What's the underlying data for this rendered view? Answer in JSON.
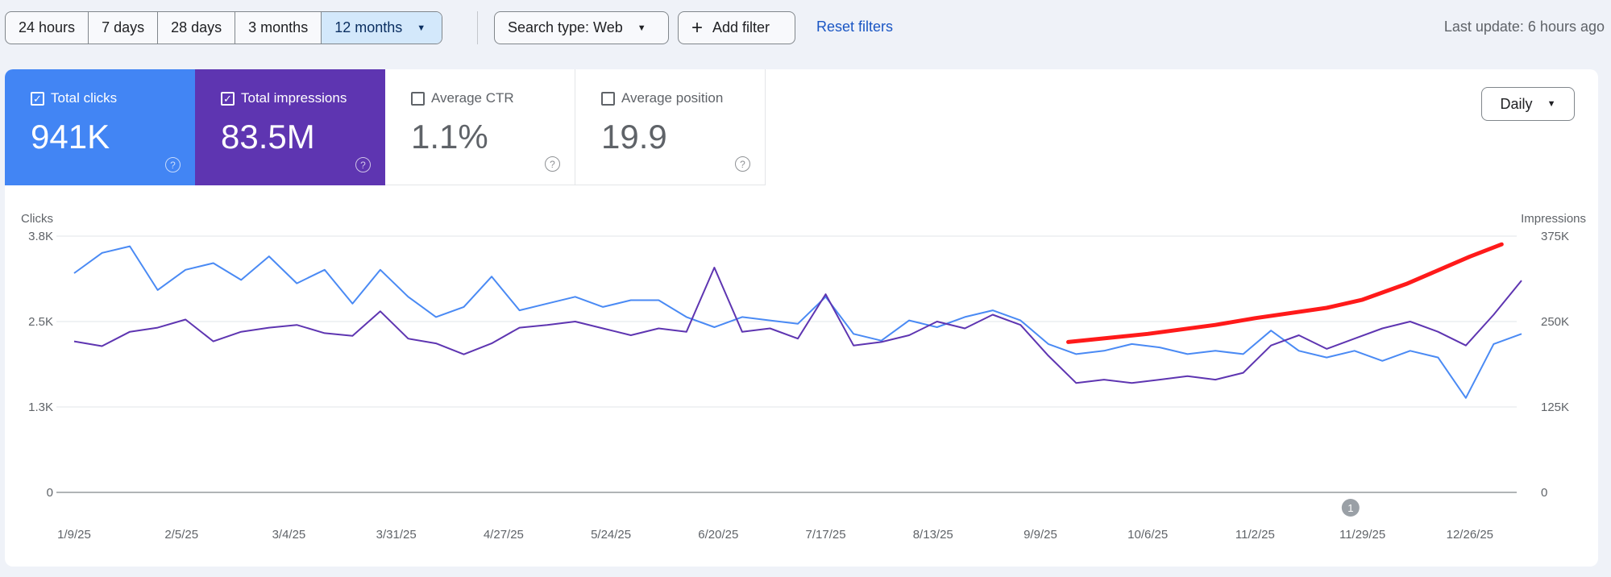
{
  "toolbar": {
    "ranges": [
      {
        "label": "24 hours"
      },
      {
        "label": "7 days"
      },
      {
        "label": "28 days"
      },
      {
        "label": "3 months"
      },
      {
        "label": "12 months",
        "selected": true
      }
    ],
    "search_type": "Search type: Web",
    "add_filter": "Add filter",
    "reset": "Reset filters",
    "last_update": "Last update: 6 hours ago"
  },
  "metrics": [
    {
      "label": "Total clicks",
      "value": "941K",
      "checked": true,
      "color": "#4285f4"
    },
    {
      "label": "Total impressions",
      "value": "83.5M",
      "checked": true,
      "color": "#5e35b1"
    },
    {
      "label": "Average CTR",
      "value": "1.1%",
      "checked": false
    },
    {
      "label": "Average position",
      "value": "19.9",
      "checked": false
    }
  ],
  "granularity": "Daily",
  "annotation_badge": "1",
  "chart_data": {
    "type": "line",
    "left_axis": {
      "label": "Clicks",
      "ticks": [
        "0",
        "1.3K",
        "2.5K",
        "3.8K"
      ],
      "range": [
        0,
        3800
      ]
    },
    "right_axis": {
      "label": "Impressions",
      "ticks": [
        "0",
        "125K",
        "250K",
        "375K"
      ],
      "range": [
        0,
        375000
      ]
    },
    "x_ticks": [
      "1/9/25",
      "2/5/25",
      "3/4/25",
      "3/31/25",
      "4/27/25",
      "5/24/25",
      "6/20/25",
      "7/17/25",
      "8/13/25",
      "9/9/25",
      "10/6/25",
      "11/2/25",
      "11/29/25",
      "12/26/25"
    ],
    "grid": true,
    "dates": [
      "2025-01-09",
      "2025-01-16",
      "2025-01-23",
      "2025-01-30",
      "2025-02-06",
      "2025-02-13",
      "2025-02-20",
      "2025-02-27",
      "2025-03-06",
      "2025-03-13",
      "2025-03-20",
      "2025-03-27",
      "2025-04-03",
      "2025-04-10",
      "2025-04-17",
      "2025-04-24",
      "2025-05-01",
      "2025-05-08",
      "2025-05-15",
      "2025-05-22",
      "2025-05-29",
      "2025-06-05",
      "2025-06-12",
      "2025-06-19",
      "2025-06-26",
      "2025-07-03",
      "2025-07-10",
      "2025-07-17",
      "2025-07-24",
      "2025-07-31",
      "2025-08-07",
      "2025-08-14",
      "2025-08-21",
      "2025-08-28",
      "2025-09-04",
      "2025-09-11",
      "2025-09-18",
      "2025-09-25",
      "2025-10-02",
      "2025-10-09",
      "2025-10-16",
      "2025-10-23",
      "2025-10-30",
      "2025-11-06",
      "2025-11-13",
      "2025-11-20",
      "2025-11-27",
      "2025-12-04",
      "2025-12-11",
      "2025-12-18",
      "2025-12-25",
      "2026-01-01",
      "2026-01-08"
    ],
    "series": [
      {
        "name": "Clicks",
        "axis": "left",
        "color": "#4a8af4",
        "values": [
          3250,
          3550,
          3650,
          3000,
          3300,
          3400,
          3150,
          3500,
          3100,
          3300,
          2800,
          3300,
          2900,
          2600,
          2750,
          3200,
          2700,
          2800,
          2900,
          2750,
          2850,
          2850,
          2600,
          2450,
          2600,
          2550,
          2500,
          2900,
          2350,
          2250,
          2550,
          2450,
          2600,
          2700,
          2550,
          2200,
          2050,
          2100,
          2200,
          2150,
          2050,
          2100,
          2050,
          2400,
          2100,
          2000,
          2100,
          1950,
          2100,
          2000,
          1400,
          2200,
          2350
        ]
      },
      {
        "name": "Impressions",
        "axis": "right",
        "color": "#5e35b1",
        "values": [
          221000,
          214000,
          235000,
          241000,
          253000,
          221000,
          235000,
          241000,
          245000,
          233000,
          229000,
          265000,
          225000,
          218000,
          202000,
          218000,
          241000,
          245000,
          250000,
          240000,
          230000,
          240000,
          235000,
          329000,
          235000,
          240000,
          225000,
          290000,
          215000,
          220000,
          230000,
          250000,
          240000,
          260000,
          245000,
          200000,
          160000,
          165000,
          160000,
          165000,
          170000,
          165000,
          175000,
          215000,
          230000,
          210000,
          225000,
          240000,
          250000,
          235000,
          215000,
          260000,
          310000
        ]
      }
    ],
    "annotation_line": {
      "color": "#ff1a1a",
      "axis": "right",
      "dates": [
        "2025-09-16",
        "2025-10-06",
        "2025-10-23",
        "2025-11-02",
        "2025-11-20",
        "2025-11-29",
        "2025-12-10",
        "2025-12-20",
        "2025-12-26",
        "2026-01-03"
      ],
      "values": [
        220000,
        232000,
        245000,
        255000,
        270000,
        282000,
        305000,
        330000,
        345000,
        363000
      ]
    },
    "annotation_marker_date": "2025-11-26"
  }
}
